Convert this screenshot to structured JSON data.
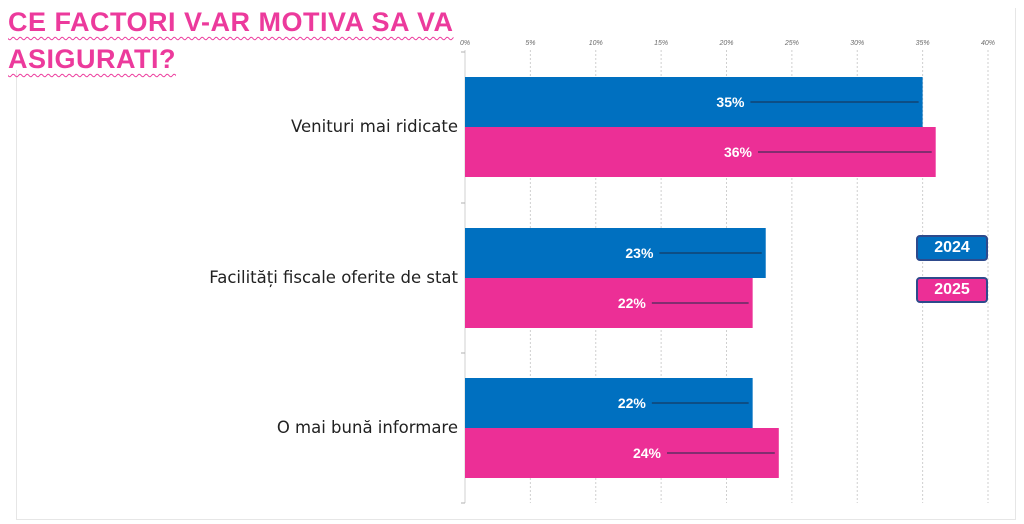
{
  "title_lines": [
    "CE FACTORI V-AR MOTIVA SA VA",
    "ASIGURATI?"
  ],
  "colors": {
    "series_2024": "#0070c0",
    "series_2025": "#ec2f96",
    "title": "#ec3a9c"
  },
  "chart_data": {
    "type": "bar",
    "orientation": "horizontal",
    "categories": [
      "Venituri mai ridicate",
      "Facilități fiscale oferite de stat",
      "O mai bună informare"
    ],
    "series": [
      {
        "name": "2024",
        "values": [
          35,
          23,
          22
        ],
        "labels": [
          "35%",
          "23%",
          "22%"
        ]
      },
      {
        "name": "2025",
        "values": [
          36,
          22,
          24
        ],
        "labels": [
          "36%",
          "22%",
          "24%"
        ]
      }
    ],
    "xlim": [
      0,
      40
    ],
    "xticks": [
      "0%",
      "5%",
      "10%",
      "15%",
      "20%",
      "25%",
      "30%",
      "35%",
      "40%"
    ],
    "x_axis_position": "top",
    "grid": true,
    "legend_position": "right"
  }
}
